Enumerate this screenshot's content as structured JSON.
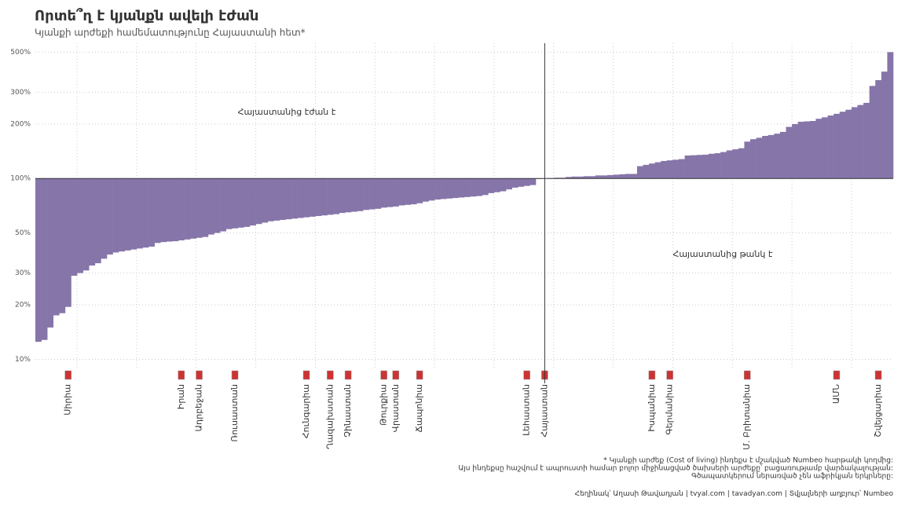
{
  "chart_data": {
    "type": "bar",
    "title": "Որտե՞ղ է կյանքն ավելի էժան",
    "subtitle": "Կյանքի արժեքի համեմատությունը Հայաստանի հետ*",
    "annotations": [
      "Հայաստանից էժան է",
      "Հայաստանից թանկ է"
    ],
    "footnotes": [
      "* Կյանքի արժեք (Cost of living) ինդեքս է մշակված Numbeo հարթակի կողմից:",
      "Այս ինդեքսը հաշվում է ապրուստի համար բոլոր միջինացված ծախսերի արժեքը՝ բացառությամբ վարձակալության:",
      "Գծապատկերում ներառված չեն աֆրիկյան երկրները:"
    ],
    "credits": [
      "Հեղինակ՝ Աղասի Թավադյան",
      "tvyal.com",
      "tavadyan.com",
      "Տվյալների աղբյուր՝ Numbeo"
    ],
    "categories": [
      null,
      null,
      null,
      null,
      null,
      "Սիրիա",
      null,
      null,
      null,
      null,
      null,
      null,
      null,
      null,
      null,
      null,
      null,
      null,
      null,
      null,
      null,
      null,
      null,
      null,
      "Իրան",
      null,
      null,
      "Ադրբեջան",
      null,
      null,
      null,
      null,
      null,
      "Ռուսաստան",
      null,
      null,
      null,
      null,
      null,
      null,
      null,
      null,
      null,
      null,
      null,
      "Հունգարիա",
      null,
      null,
      null,
      "Ղազախստան",
      null,
      null,
      "Չինաստան",
      null,
      null,
      null,
      null,
      null,
      "Թուրքիա",
      null,
      "Վրաստան",
      null,
      null,
      null,
      "Ճապոնիա",
      null,
      null,
      null,
      null,
      null,
      null,
      null,
      null,
      null,
      null,
      null,
      null,
      null,
      null,
      null,
      null,
      null,
      "Լեհաստան",
      null,
      null,
      "Հայաստան",
      null,
      null,
      null,
      null,
      null,
      null,
      null,
      null,
      null,
      null,
      null,
      null,
      null,
      null,
      null,
      null,
      null,
      "Իսպանիա",
      null,
      null,
      "Գերմանիա",
      null,
      null,
      null,
      null,
      null,
      null,
      null,
      null,
      null,
      null,
      null,
      null,
      "Մ. Բրիտանիա",
      null,
      null,
      null,
      null,
      null,
      null,
      null,
      null,
      null,
      null,
      null,
      null,
      null,
      null,
      "ԱՄՆ",
      null,
      null,
      null,
      null,
      null,
      null,
      "Շվեյցարիա",
      null,
      null
    ],
    "values": [
      12.5,
      12.8,
      15,
      17.5,
      18,
      19.5,
      29,
      30,
      31,
      33,
      34,
      36,
      38,
      39,
      39.5,
      40,
      40.5,
      41,
      41.5,
      42,
      44,
      44.5,
      44.8,
      45,
      45.5,
      46,
      46.5,
      47,
      47.5,
      49,
      50,
      51,
      52.5,
      53,
      53.5,
      54,
      55,
      56,
      57,
      58,
      58.5,
      59,
      59.5,
      60,
      60.5,
      61,
      61.5,
      62,
      62.5,
      63,
      63.5,
      64.5,
      65,
      65.5,
      66,
      67,
      67.5,
      68,
      69,
      69.5,
      70,
      71,
      71.5,
      72,
      73,
      74.5,
      75.5,
      76.5,
      77,
      77.5,
      78,
      78.5,
      79,
      79.5,
      80,
      81,
      83,
      84,
      85,
      87,
      89,
      90,
      91,
      92,
      99.5,
      100,
      100.5,
      101,
      101,
      102,
      102.5,
      102.5,
      103,
      103,
      104,
      104,
      104.5,
      105,
      105.5,
      106,
      106,
      117,
      119,
      121,
      123,
      125,
      126,
      127,
      128,
      134,
      134.5,
      135,
      135.5,
      137,
      138,
      140,
      143,
      145,
      147,
      160,
      165,
      168,
      172,
      174,
      177,
      181,
      193,
      200,
      206,
      207,
      208,
      214,
      218,
      223,
      228,
      234,
      240,
      248,
      255,
      262,
      325,
      350,
      390,
      500
    ],
    "color": "#8675a9",
    "baseline": 100,
    "log_scale": true,
    "grid": true,
    "ylim": [
      9,
      560
    ],
    "yticks": [
      {
        "value": 10,
        "label": "10%"
      },
      {
        "value": 20,
        "label": "20%"
      },
      {
        "value": 30,
        "label": "30%"
      },
      {
        "value": 50,
        "label": "50%"
      },
      {
        "value": 100,
        "label": "100%"
      },
      {
        "value": 200,
        "label": "200%"
      },
      {
        "value": 300,
        "label": "300%"
      },
      {
        "value": 500,
        "label": "500%"
      }
    ]
  }
}
